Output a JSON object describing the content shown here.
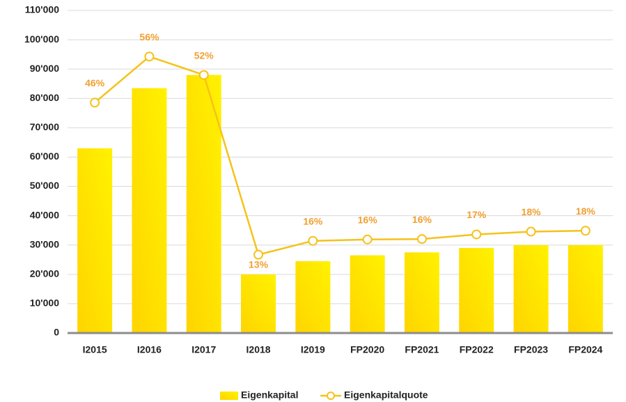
{
  "chart_data": {
    "type": "bar-line",
    "categories": [
      "I2015",
      "I2016",
      "I2017",
      "I2018",
      "I2019",
      "FP2020",
      "FP2021",
      "FP2022",
      "FP2023",
      "FP2024"
    ],
    "series": [
      {
        "name": "Eigenkapital",
        "type": "bar",
        "color": "#ffd400",
        "values": [
          63000,
          83500,
          88000,
          20000,
          24500,
          26500,
          27500,
          29000,
          30000,
          30000
        ]
      },
      {
        "name": "Eigenkapitalquote",
        "type": "line",
        "axis": "y2",
        "color": "#f5c21a",
        "label_color": "#f0a030",
        "values": [
          46,
          56,
          52,
          13,
          16,
          16.3,
          16.4,
          17.4,
          18,
          18.2
        ],
        "value_labels": [
          "46%",
          "56%",
          "52%",
          "13%",
          "16%",
          "16%",
          "16%",
          "17%",
          "18%",
          "18%"
        ]
      }
    ],
    "ylim": [
      0,
      110000
    ],
    "yticks": [
      0,
      {
        "value": 10000,
        "label": "10'000"
      },
      {
        "value": 20000,
        "label": "20'000"
      },
      {
        "value": 30000,
        "label": "30'000"
      },
      {
        "value": 40000,
        "label": "40'000"
      },
      {
        "value": 50000,
        "label": "50'000"
      },
      {
        "value": 60000,
        "label": "60'000"
      },
      {
        "value": 70000,
        "label": "70'000"
      },
      {
        "value": 80000,
        "label": "80'000"
      },
      {
        "value": 90000,
        "label": "90'000"
      },
      {
        "value": 100000,
        "label": "100'000"
      },
      {
        "value": 110000,
        "label": "110'000"
      }
    ],
    "y2lim": [
      -4,
      66
    ],
    "grid": true,
    "legend": "bottom"
  }
}
